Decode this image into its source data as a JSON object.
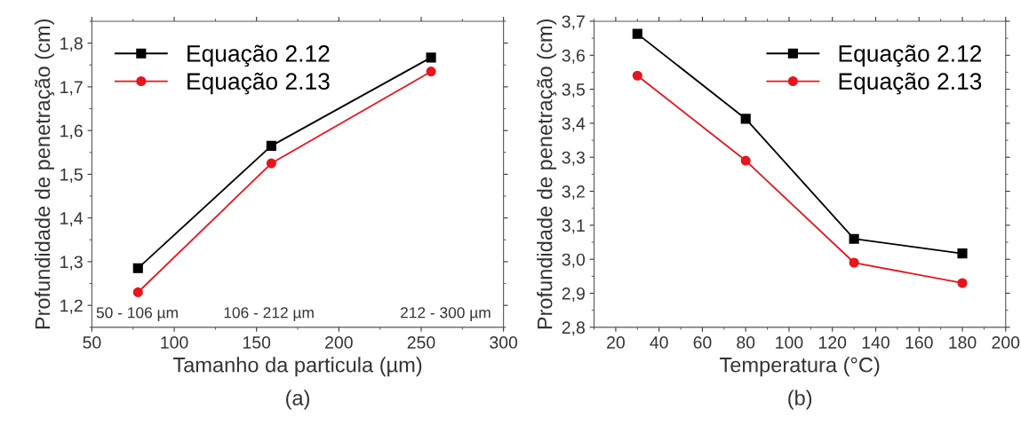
{
  "chart_data": [
    {
      "type": "line",
      "xlabel": "Tamanho da particula (µm)",
      "ylabel": "Profundidade de penetração (cm)",
      "x": [
        78,
        159,
        256
      ],
      "series": [
        {
          "name": "Equação 2.12",
          "color": "#000000",
          "marker": "square",
          "values": [
            1.285,
            1.565,
            1.767
          ]
        },
        {
          "name": "Equação 2.13",
          "color": "#e8141c",
          "marker": "circle",
          "values": [
            1.23,
            1.525,
            1.735
          ]
        }
      ],
      "xlim": [
        50,
        300
      ],
      "xticks": [
        50,
        100,
        150,
        200,
        250,
        300
      ],
      "ylim": [
        1.15,
        1.85
      ],
      "yticks": [
        {
          "value": 1.2,
          "label": "1,2"
        },
        {
          "value": 1.3,
          "label": "1,3"
        },
        {
          "value": 1.4,
          "label": "1,4"
        },
        {
          "value": 1.5,
          "label": "1,5"
        },
        {
          "value": 1.6,
          "label": "1,6"
        },
        {
          "value": 1.7,
          "label": "1,7"
        },
        {
          "value": 1.8,
          "label": "1,8"
        }
      ],
      "annotations": [
        "50 - 106 µm",
        "106 - 212 µm",
        "212 - 300 µm",
        "(a)"
      ],
      "legend": "top left",
      "grid": false,
      "line_style": "solid"
    },
    {
      "type": "line",
      "xlabel": "Temperatura (°C)",
      "ylabel": "Profundidade de penetração (cm)",
      "x": [
        30,
        80,
        130,
        180
      ],
      "series": [
        {
          "name": "Equação 2.12",
          "color": "#000000",
          "marker": "square",
          "values": [
            3.663,
            3.413,
            3.06,
            3.017
          ]
        },
        {
          "name": "Equação 2.13",
          "color": "#e8141c",
          "marker": "circle",
          "values": [
            3.54,
            3.29,
            2.99,
            2.93
          ]
        }
      ],
      "xlim": [
        10,
        200
      ],
      "xticks": [
        20,
        40,
        60,
        80,
        100,
        120,
        140,
        160,
        180,
        200
      ],
      "ylim": [
        2.8,
        3.7
      ],
      "yticks": [
        {
          "value": 2.8,
          "label": "2,8"
        },
        {
          "value": 2.9,
          "label": "2,9"
        },
        {
          "value": 3.0,
          "label": "3,0"
        },
        {
          "value": 3.1,
          "label": "3,1"
        },
        {
          "value": 3.2,
          "label": "3,2"
        },
        {
          "value": 3.3,
          "label": "3,3"
        },
        {
          "value": 3.4,
          "label": "3,4"
        },
        {
          "value": 3.5,
          "label": "3,5"
        },
        {
          "value": 3.6,
          "label": "3,6"
        },
        {
          "value": 3.7,
          "label": "3,7"
        }
      ],
      "annotations": [
        "(b)"
      ],
      "legend": "top right",
      "grid": false,
      "line_style": "solid"
    }
  ]
}
